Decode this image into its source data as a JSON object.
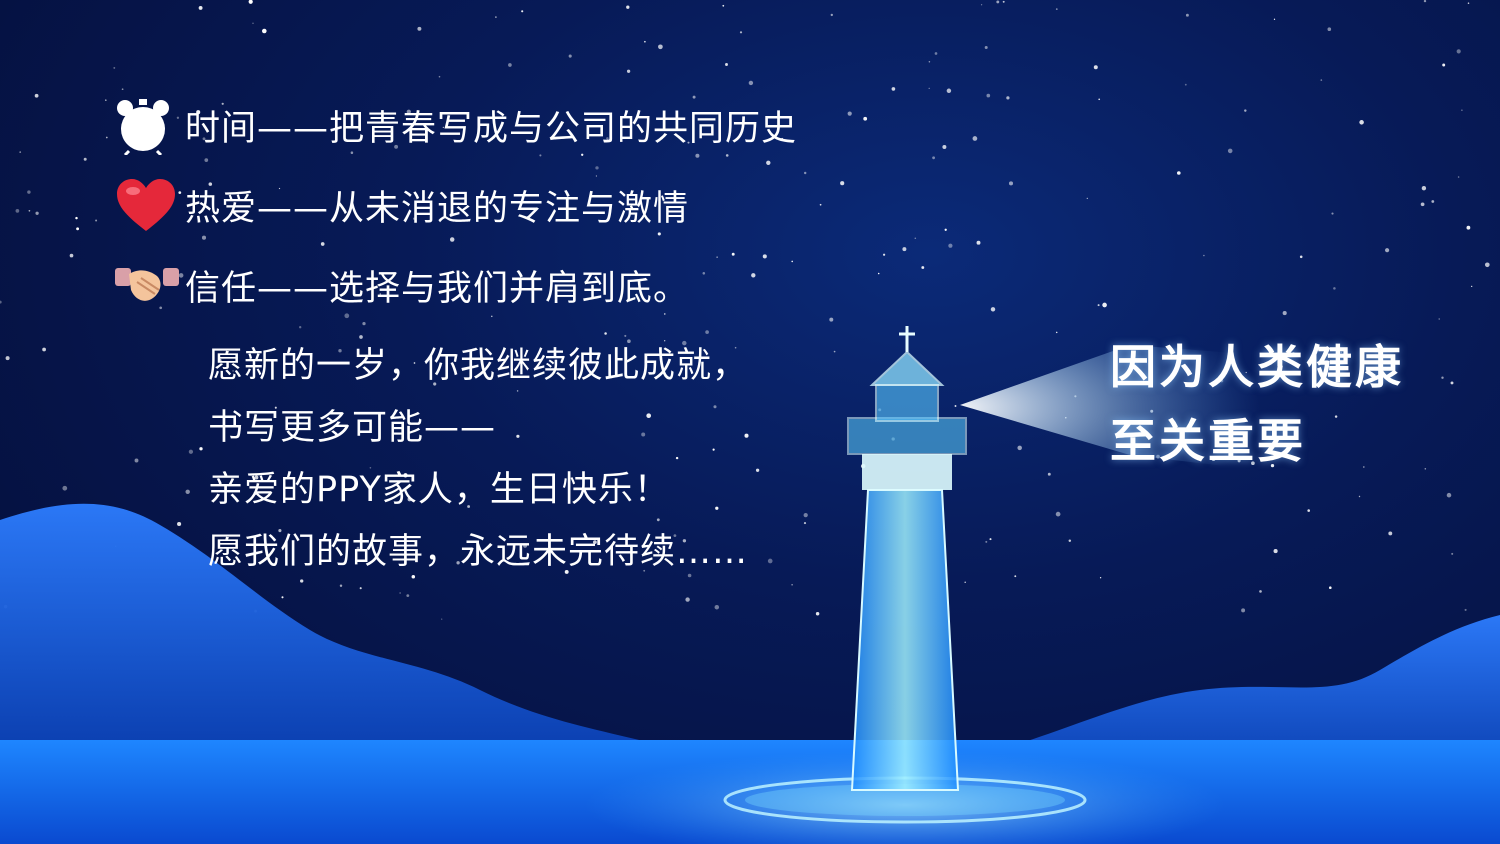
{
  "lines": [
    {
      "icon": "alarm-clock-icon",
      "text": "时间——把青春写成与公司的共同历史"
    },
    {
      "icon": "heart-icon",
      "text": "热爱——从未消退的专注与激情"
    },
    {
      "icon": "handshake-icon",
      "text": "信任——选择与我们并肩到底。"
    }
  ],
  "wish": [
    "愿新的一岁，你我继续彼此成就，",
    "书写更多可能——",
    "亲爱的PPY家人，生日快乐！",
    "愿我们的故事，永远未完待续……"
  ],
  "slogan": {
    "line1": "因为人类健康",
    "line2": "至关重要"
  },
  "colors": {
    "sky": "#071a57",
    "glow": "#5ed0ff",
    "text": "#ffffff",
    "heart": "#e5283a"
  }
}
